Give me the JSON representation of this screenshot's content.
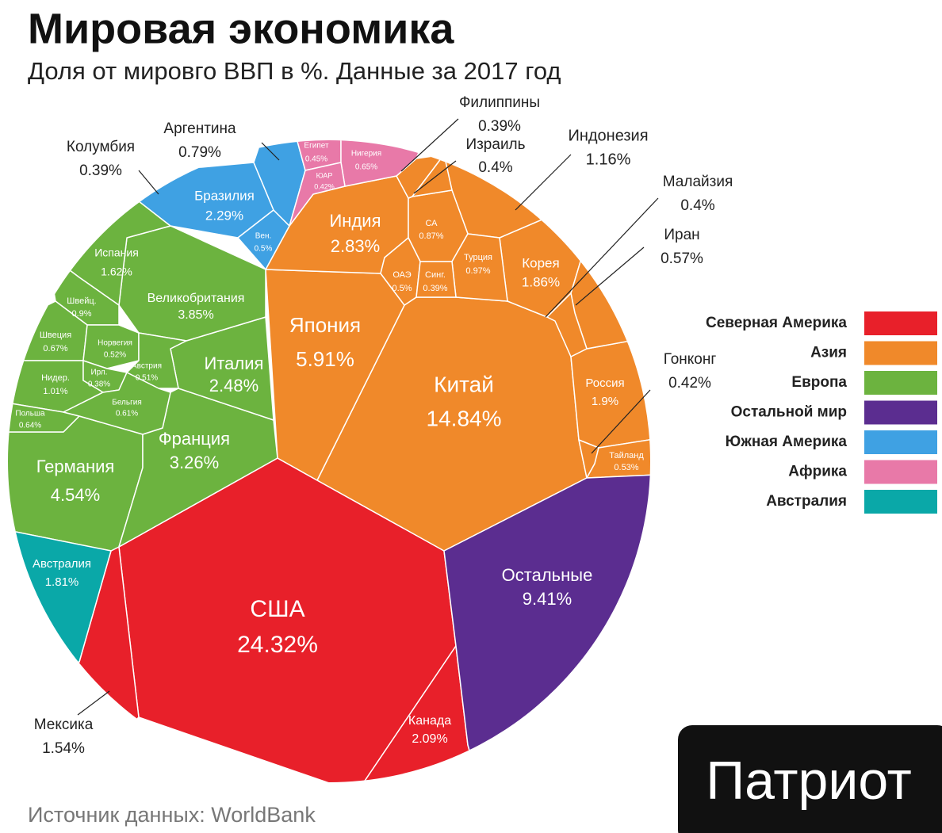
{
  "chart_data": {
    "type": "voronoi",
    "title": "Мировая экономика",
    "subtitle": "Доля от мировго ВВП в %. Данные за 2017 год",
    "source": "Источник данных: WorldBank",
    "brand": "Патриот",
    "series": [
      {
        "name": "Северная Америка",
        "color": "#e8202a",
        "categories": [
          "США",
          "Канада",
          "Мексика"
        ],
        "values": [
          24.32,
          2.09,
          1.54
        ],
        "value_labels": [
          "24.32%",
          "2.09%",
          "1.54%"
        ]
      },
      {
        "name": "Азия",
        "color": "#f0892a",
        "categories": [
          "Китай",
          "Япония",
          "Индия",
          "Корея",
          "Россия",
          "Индонезия",
          "СА",
          "Турция",
          "ОАЭ",
          "Синг.",
          "Иран",
          "Малайзия",
          "Гонконг",
          "Тайланд",
          "Филиппины",
          "Израиль"
        ],
        "values": [
          14.84,
          5.91,
          2.83,
          1.86,
          1.9,
          1.16,
          0.87,
          0.97,
          0.5,
          0.39,
          0.57,
          0.4,
          0.42,
          0.53,
          0.39,
          0.4
        ],
        "value_labels": [
          "14.84%",
          "5.91%",
          "2.83%",
          "1.86%",
          "1.9%",
          "1.16%",
          "0.87%",
          "0.97%",
          "0.5%",
          "0.39%",
          "0.57%",
          "0.4%",
          "0.42%",
          "0.53%",
          "0.39%",
          "0.4%"
        ]
      },
      {
        "name": "Европа",
        "color": "#6cb33f",
        "categories": [
          "Германия",
          "Франция",
          "Италия",
          "Великобритания",
          "Испания",
          "Швейц.",
          "Швеция",
          "Норвегия",
          "Нидер.",
          "Ирл.",
          "Австрия",
          "Польша",
          "Бельгия"
        ],
        "values": [
          4.54,
          3.26,
          2.48,
          3.85,
          1.62,
          0.9,
          0.67,
          0.52,
          1.01,
          0.38,
          0.51,
          0.64,
          0.61
        ],
        "value_labels": [
          "4.54%",
          "3.26%",
          "2.48%",
          "3.85%",
          "1.62%",
          "0.9%",
          "0.67%",
          "0.52%",
          "1.01%",
          "0.38%",
          "0.51%",
          "0.64%",
          "0.61%"
        ]
      },
      {
        "name": "Остальной мир",
        "color": "#5b2d90",
        "categories": [
          "Остальные"
        ],
        "values": [
          9.41
        ],
        "value_labels": [
          "9.41%"
        ]
      },
      {
        "name": "Южная Америка",
        "color": "#3fa1e3",
        "categories": [
          "Бразилия",
          "Вен.",
          "Аргентина",
          "Колумбия"
        ],
        "values": [
          2.29,
          0.5,
          0.79,
          0.39
        ],
        "value_labels": [
          "2.29%",
          "0.5%",
          "0.79%",
          "0.39%"
        ]
      },
      {
        "name": "Африка",
        "color": "#e879a8",
        "categories": [
          "Египет",
          "Нигерия",
          "ЮАР"
        ],
        "values": [
          0.45,
          0.65,
          0.42
        ],
        "value_labels": [
          "0.45%",
          "0.65%",
          "0.42%"
        ]
      },
      {
        "name": "Австралия",
        "color": "#0aa8a8",
        "categories": [
          "Австралия"
        ],
        "values": [
          1.81
        ],
        "value_labels": [
          "1.81%"
        ]
      }
    ]
  }
}
